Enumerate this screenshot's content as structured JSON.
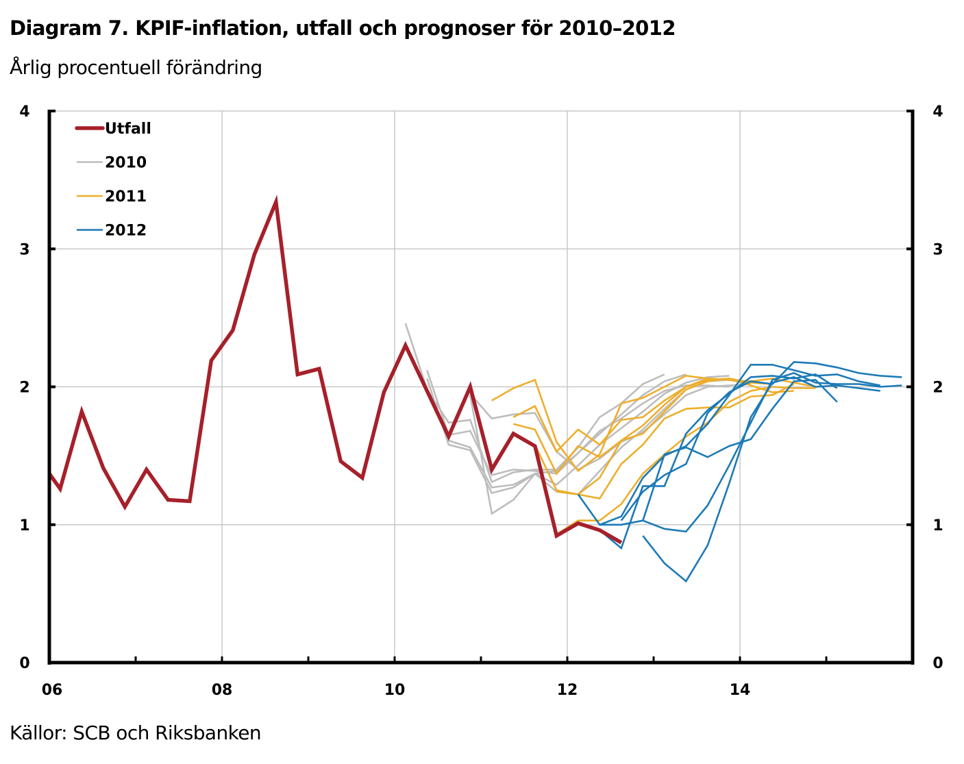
{
  "header": {
    "title": "Diagram 7. KPIF-inflation, utfall och prognoser för 2010–2012",
    "subtitle": "Årlig procentuell förändring"
  },
  "footer": {
    "source": "Källor: SCB och Riksbanken"
  },
  "chart_data": {
    "type": "line",
    "title": "Diagram 7. KPIF-inflation, utfall och prognoser för 2010–2012",
    "subtitle": "Årlig procentuell förändring",
    "xlabel": "",
    "ylabel": "",
    "xlim": [
      2006.0,
      2016.0
    ],
    "ylim": [
      0,
      4
    ],
    "x_ticks": [
      2006,
      2008,
      2010,
      2012,
      2014
    ],
    "x_tick_labels": [
      "06",
      "08",
      "10",
      "12",
      "14"
    ],
    "x_minor_ticks": [
      2007,
      2009,
      2011,
      2013,
      2015
    ],
    "y_ticks": [
      0,
      1,
      2,
      3,
      4
    ],
    "y_tick_labels": [
      "0",
      "1",
      "2",
      "3",
      "4"
    ],
    "y_axis_right": true,
    "grid": true,
    "legend_position": "top-left",
    "colors": {
      "Utfall": "#a6202a",
      "2010": "#bdbdbd",
      "2011": "#eeae2b",
      "2012": "#1c7ab7",
      "grid": "#c8c8c8",
      "axis": "#000000"
    },
    "legend": [
      "Utfall",
      "2010",
      "2011",
      "2012"
    ],
    "series": [
      {
        "name": "Utfall",
        "group": "Utfall",
        "x": [
          2006.0,
          2006.125,
          2006.375,
          2006.625,
          2006.875,
          2007.125,
          2007.375,
          2007.625,
          2007.875,
          2008.125,
          2008.375,
          2008.625,
          2008.875,
          2009.125,
          2009.375,
          2009.625,
          2009.875,
          2010.125,
          2010.375,
          2010.625,
          2010.875,
          2011.125,
          2011.375,
          2011.625,
          2011.875,
          2012.125,
          2012.375,
          2012.625
        ],
        "values": [
          1.37,
          1.26,
          1.82,
          1.41,
          1.13,
          1.4,
          1.18,
          1.17,
          2.19,
          2.41,
          2.96,
          3.34,
          2.09,
          2.13,
          1.46,
          1.34,
          1.96,
          2.3,
          1.97,
          1.64,
          2.0,
          1.4,
          1.66,
          1.57,
          0.92,
          1.01,
          0.96,
          0.87
        ]
      },
      {
        "name": "2010 prognos A",
        "group": "2010",
        "x": [
          2010.125,
          2010.375,
          2010.625,
          2010.875,
          2011.125,
          2011.375,
          2011.625,
          2011.875,
          2012.125,
          2012.375,
          2012.625,
          2012.875,
          2013.125
        ],
        "values": [
          2.46,
          1.98,
          1.74,
          1.76,
          1.31,
          1.38,
          1.4,
          1.4,
          1.56,
          1.78,
          1.88,
          2.02,
          2.09
        ]
      },
      {
        "name": "2010 prognos B",
        "group": "2010",
        "x": [
          2010.375,
          2010.625,
          2010.875,
          2011.125,
          2011.375,
          2011.625,
          2011.875,
          2012.125,
          2012.375,
          2012.625,
          2012.875,
          2013.125,
          2013.375
        ],
        "values": [
          2.12,
          1.65,
          1.68,
          1.36,
          1.4,
          1.39,
          1.37,
          1.52,
          1.66,
          1.8,
          1.94,
          2.04,
          2.09
        ]
      },
      {
        "name": "2010 prognos C",
        "group": "2010",
        "x": [
          2010.375,
          2010.625,
          2010.875,
          2011.125,
          2011.375,
          2011.625,
          2011.875,
          2012.125,
          2012.375,
          2012.625,
          2012.875,
          2013.125,
          2013.375,
          2013.625,
          2013.875
        ],
        "values": [
          2.06,
          1.58,
          1.54,
          1.23,
          1.27,
          1.37,
          1.29,
          1.43,
          1.58,
          1.7,
          1.82,
          1.95,
          2.03,
          2.07,
          2.08
        ]
      },
      {
        "name": "2010 prognos D",
        "group": "2010",
        "x": [
          2010.625,
          2010.875,
          2011.125,
          2011.375,
          2011.625,
          2011.875,
          2012.125,
          2012.375,
          2012.625,
          2012.875,
          2013.125,
          2013.375,
          2013.625,
          2013.875
        ],
        "values": [
          1.61,
          1.56,
          1.27,
          1.29,
          1.37,
          1.39,
          1.52,
          1.68,
          1.77,
          1.88,
          1.97,
          2.01,
          2.01,
          2.0
        ]
      },
      {
        "name": "2010 prognos E",
        "group": "2010",
        "x": [
          2010.875,
          2011.125,
          2011.375,
          2011.625,
          2011.875,
          2012.125,
          2012.375,
          2012.625,
          2012.875,
          2013.125,
          2013.375,
          2013.625,
          2013.875,
          2014.125
        ],
        "values": [
          1.95,
          1.77,
          1.8,
          1.81,
          1.53,
          1.4,
          1.48,
          1.6,
          1.67,
          1.8,
          1.94,
          2.0,
          2.01,
          2.02
        ]
      },
      {
        "name": "2010 prognos F",
        "group": "2010",
        "x": [
          2010.875,
          2011.125,
          2011.375,
          2011.625,
          2011.875,
          2012.125,
          2012.375,
          2012.625,
          2012.875,
          2013.125,
          2013.375,
          2013.625,
          2013.875
        ],
        "values": [
          1.94,
          1.08,
          1.18,
          1.37,
          1.24,
          1.22,
          1.39,
          1.56,
          1.69,
          1.84,
          1.98,
          2.04,
          2.05
        ]
      },
      {
        "name": "2011 prognos A",
        "group": "2011",
        "x": [
          2011.125,
          2011.375,
          2011.625,
          2011.875,
          2012.125,
          2012.375,
          2012.625,
          2012.875,
          2013.125,
          2013.375,
          2013.625,
          2013.875,
          2014.125
        ],
        "values": [
          1.9,
          1.99,
          2.05,
          1.6,
          1.39,
          1.51,
          1.88,
          1.92,
          2.0,
          2.08,
          2.06,
          2.05,
          2.02
        ]
      },
      {
        "name": "2011 prognos B",
        "group": "2011",
        "x": [
          2011.375,
          2011.625,
          2011.875,
          2012.125,
          2012.375,
          2012.625,
          2012.875,
          2013.125,
          2013.375,
          2013.625,
          2013.875,
          2014.125,
          2014.375
        ],
        "values": [
          1.78,
          1.86,
          1.53,
          1.69,
          1.58,
          1.76,
          1.78,
          1.9,
          2.0,
          2.05,
          2.06,
          2.03,
          2.02
        ]
      },
      {
        "name": "2011 prognos C",
        "group": "2011",
        "x": [
          2011.375,
          2011.625,
          2011.875,
          2012.125,
          2012.375,
          2012.625,
          2012.875,
          2013.125,
          2013.375,
          2013.625,
          2013.875,
          2014.125,
          2014.375,
          2014.625
        ],
        "values": [
          1.73,
          1.69,
          1.37,
          1.57,
          1.49,
          1.61,
          1.66,
          1.82,
          1.98,
          2.04,
          2.06,
          2.01,
          1.96,
          1.97
        ]
      },
      {
        "name": "2011 prognos D",
        "group": "2011",
        "x": [
          2011.625,
          2011.875,
          2012.125,
          2012.375,
          2012.625,
          2012.875,
          2013.125,
          2013.375,
          2013.625,
          2013.875,
          2014.125,
          2014.375,
          2014.625
        ],
        "values": [
          1.58,
          1.25,
          1.22,
          1.19,
          1.44,
          1.58,
          1.77,
          1.84,
          1.85,
          1.85,
          1.93,
          1.94,
          2.02
        ]
      },
      {
        "name": "2011 prognos E",
        "group": "2011",
        "x": [
          2011.875,
          2012.125,
          2012.375,
          2012.625,
          2012.875,
          2013.125,
          2013.375,
          2013.625,
          2013.875,
          2014.125,
          2014.375,
          2014.625,
          2014.875
        ],
        "values": [
          1.24,
          1.22,
          1.34,
          1.61,
          1.72,
          1.87,
          2.0,
          2.06,
          2.05,
          2.04,
          2.06,
          2.03,
          2.0
        ]
      },
      {
        "name": "2011 prognos F",
        "group": "2011",
        "x": [
          2011.875,
          2012.125,
          2012.375,
          2012.625,
          2012.875,
          2013.125,
          2013.375,
          2013.625,
          2013.875,
          2014.125,
          2014.375,
          2014.625,
          2014.875
        ],
        "values": [
          0.93,
          1.03,
          1.03,
          1.15,
          1.37,
          1.51,
          1.64,
          1.74,
          1.89,
          1.97,
          2.0,
          1.99,
          1.99
        ]
      },
      {
        "name": "2012 prognos A",
        "group": "2012",
        "x": [
          2012.125,
          2012.375,
          2012.625,
          2012.875,
          2013.125,
          2013.375,
          2013.625,
          2013.875,
          2014.125,
          2014.375,
          2014.625,
          2014.875,
          2015.125
        ],
        "values": [
          1.22,
          1.0,
          1.0,
          1.03,
          1.51,
          1.56,
          1.49,
          1.57,
          1.62,
          1.84,
          2.04,
          2.05,
          1.89
        ]
      },
      {
        "name": "2012 prognos B",
        "group": "2012",
        "x": [
          2012.375,
          2012.625,
          2012.875,
          2013.125,
          2013.375,
          2013.625,
          2013.875,
          2014.125,
          2014.375,
          2014.625,
          2014.875,
          2015.125
        ],
        "values": [
          0.96,
          0.83,
          1.28,
          1.28,
          1.66,
          1.83,
          1.95,
          2.07,
          2.08,
          2.06,
          2.09,
          1.99
        ]
      },
      {
        "name": "2012 prognos C",
        "group": "2012",
        "x": [
          2012.375,
          2012.625,
          2012.875,
          2013.125,
          2013.375,
          2013.625,
          2013.875,
          2014.125,
          2014.375,
          2014.625,
          2014.875,
          2015.125,
          2015.375,
          2015.625
        ],
        "values": [
          1.0,
          1.06,
          1.34,
          1.5,
          1.57,
          1.73,
          1.94,
          2.16,
          2.16,
          2.12,
          2.08,
          2.09,
          2.04,
          2.01
        ]
      },
      {
        "name": "2012 prognos D",
        "group": "2012",
        "x": [
          2012.625,
          2012.875,
          2013.125,
          2013.375,
          2013.625,
          2013.875,
          2014.125,
          2014.375,
          2014.625,
          2014.875,
          2015.125,
          2015.375,
          2015.625,
          2015.875
        ],
        "values": [
          1.03,
          1.24,
          1.36,
          1.44,
          1.81,
          1.96,
          2.04,
          2.02,
          2.18,
          2.17,
          2.14,
          2.1,
          2.08,
          2.07
        ]
      },
      {
        "name": "2012 prognos E",
        "group": "2012",
        "x": [
          2012.875,
          2013.125,
          2013.375,
          2013.625,
          2013.875,
          2014.125,
          2014.375,
          2014.625,
          2014.875,
          2015.125,
          2015.375,
          2015.625,
          2015.875
        ],
        "values": [
          1.03,
          0.97,
          0.95,
          1.14,
          1.43,
          1.74,
          2.05,
          2.1,
          2.03,
          2.02,
          2.02,
          2.0,
          2.01
        ]
      },
      {
        "name": "2012 prognos F",
        "group": "2012",
        "x": [
          2012.875,
          2013.125,
          2013.375,
          2013.625,
          2013.875,
          2014.125,
          2014.375,
          2014.625,
          2014.875,
          2015.125,
          2015.375,
          2015.625
        ],
        "values": [
          0.92,
          0.72,
          0.59,
          0.85,
          1.3,
          1.78,
          2.03,
          2.07,
          2.0,
          2.01,
          1.99,
          1.97
        ]
      }
    ]
  }
}
